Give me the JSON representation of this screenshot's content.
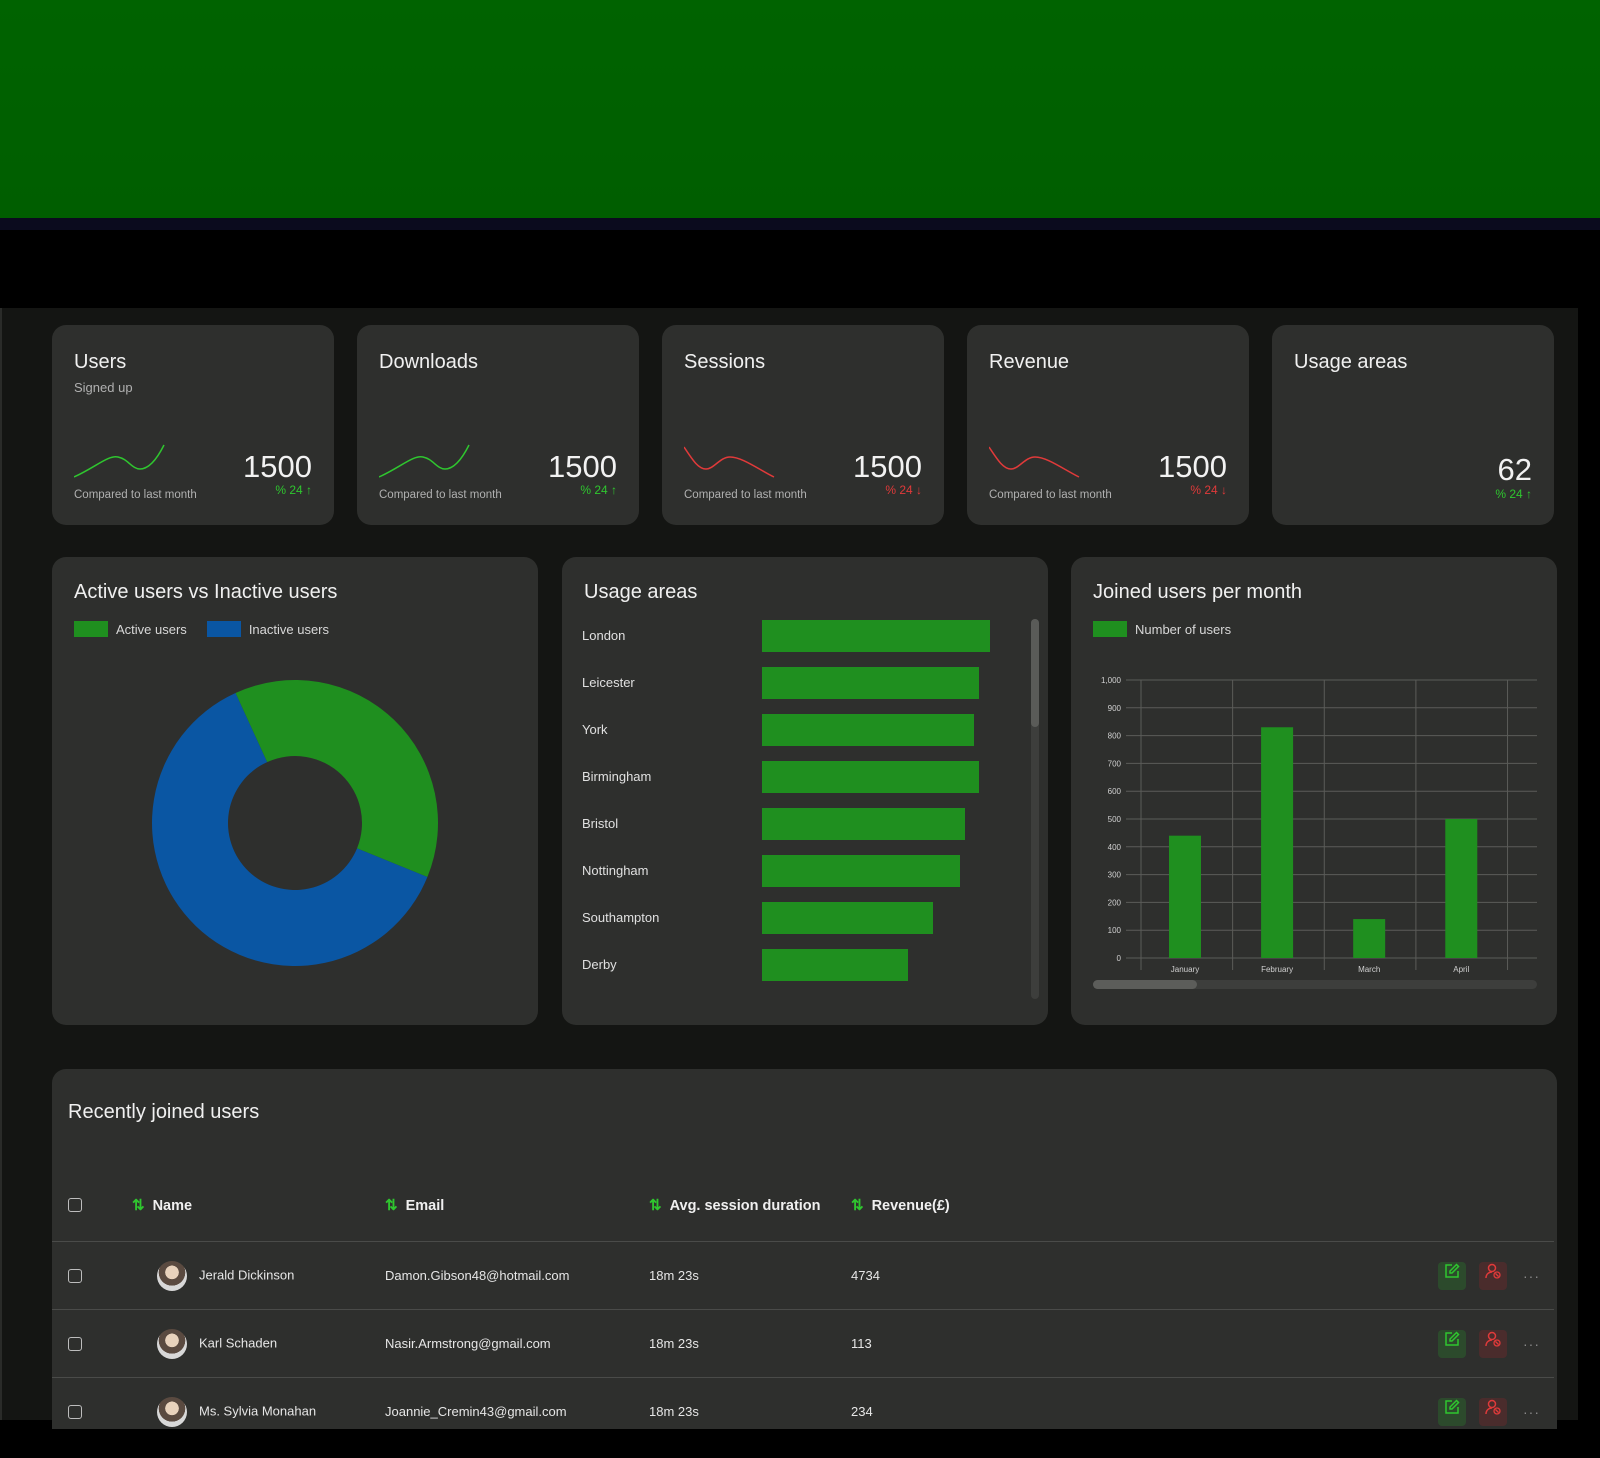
{
  "colors": {
    "green": "#1f8f1f",
    "blue": "#0a56a3",
    "up": "#2fc62f",
    "down": "#e03a3a"
  },
  "stats": [
    {
      "title": "Users",
      "subtitle": "Signed up",
      "value": "1500",
      "change": "% 24 ↑",
      "compare": "Compared to last month",
      "trend": "up"
    },
    {
      "title": "Downloads",
      "subtitle": "",
      "value": "1500",
      "change": "% 24 ↑",
      "compare": "Compared to last month",
      "trend": "up"
    },
    {
      "title": "Sessions",
      "subtitle": "",
      "value": "1500",
      "change": "% 24 ↓",
      "compare": "Compared to last month",
      "trend": "down"
    },
    {
      "title": "Revenue",
      "subtitle": "",
      "value": "1500",
      "change": "% 24 ↓",
      "compare": "Compared to last month",
      "trend": "down"
    },
    {
      "title": "Usage areas",
      "subtitle": "",
      "value": "62",
      "change": "% 24 ↑",
      "compare": "",
      "trend": "up"
    }
  ],
  "donut": {
    "title": "Active users vs Inactive users",
    "legend": [
      "Active users",
      "Inactive users"
    ],
    "chart_data": {
      "type": "pie",
      "labels": [
        "Active users",
        "Inactive users"
      ],
      "values": [
        38,
        62
      ]
    }
  },
  "areas": {
    "title": "Usage areas",
    "chart_data": {
      "type": "bar",
      "orientation": "horizontal",
      "categories": [
        "London",
        "Leicester",
        "York",
        "Birmingham",
        "Bristol",
        "Nottingham",
        "Southampton",
        "Derby"
      ],
      "values": [
        100,
        95,
        93,
        95,
        89,
        87,
        75,
        64
      ]
    }
  },
  "joined": {
    "title": "Joined users per month",
    "legend": [
      "Number of users"
    ],
    "chart_data": {
      "type": "bar",
      "categories": [
        "January",
        "February",
        "March",
        "April"
      ],
      "series": [
        {
          "name": "Number of users",
          "values": [
            440,
            830,
            140,
            500
          ]
        }
      ],
      "ylim": [
        0,
        1000
      ],
      "yticks": [
        "0",
        "100",
        "200",
        "300",
        "400",
        "500",
        "600",
        "700",
        "800",
        "900",
        "1,000"
      ],
      "grid": true
    }
  },
  "table": {
    "title": "Recently joined users",
    "columns": [
      "Name",
      "Email",
      "Avg. session duration",
      "Revenue(£)"
    ],
    "rows": [
      {
        "name": "Jerald Dickinson",
        "email": "Damon.Gibson48@hotmail.com",
        "duration": "18m 23s",
        "revenue": "4734"
      },
      {
        "name": "Karl Schaden",
        "email": "Nasir.Armstrong@gmail.com",
        "duration": "18m 23s",
        "revenue": "113"
      },
      {
        "name": "Ms. Sylvia Monahan",
        "email": "Joannie_Cremin43@gmail.com",
        "duration": "18m 23s",
        "revenue": "234"
      }
    ]
  }
}
